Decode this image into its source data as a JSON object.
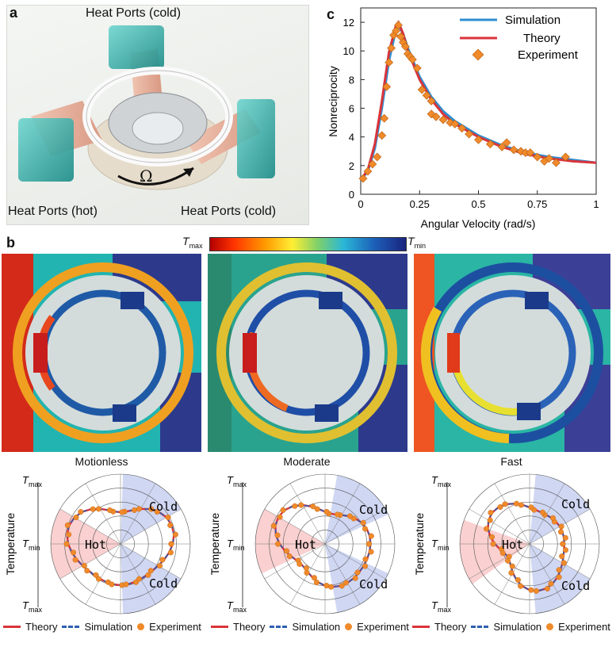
{
  "panel_a": {
    "letter": "a",
    "label_top": "Heat Ports (cold)",
    "label_left": "Heat Ports (hot)",
    "label_right": "Heat Ports (cold)",
    "omega": "Ω"
  },
  "panel_b": {
    "letter": "b",
    "colorbar": {
      "t_max_main": "T",
      "t_max_sub": "max",
      "t_min_main": "T",
      "t_min_sub": "min"
    },
    "simulations": [
      {
        "title": "Motionless"
      },
      {
        "title": "Moderate"
      },
      {
        "title": "Fast"
      }
    ],
    "polar": {
      "y_axis_title": "Temperature",
      "tick_top_main": "T",
      "tick_top_sub": "max",
      "tick_mid_main": "T",
      "tick_mid_sub": "min",
      "tick_bot_main": "T",
      "tick_bot_sub": "max",
      "hot_label": "Hot",
      "cold_label": "Cold"
    },
    "legend": {
      "theory": "Theory",
      "simulation": "Simulation",
      "experiment": "Experiment"
    }
  },
  "chart_data": {
    "type": "line",
    "letter": "c",
    "xlabel": "Angular Velocity (rad/s)",
    "ylabel": "Nonreciprocity",
    "xlim": [
      0,
      1
    ],
    "ylim": [
      0,
      13
    ],
    "xticks": [
      "0",
      "0.25",
      "0.5",
      "0.75",
      "1"
    ],
    "yticks": [
      "0",
      "2",
      "4",
      "6",
      "8",
      "10",
      "12"
    ],
    "legend": [
      "Simulation",
      "Theory",
      "Experiment"
    ],
    "colors": {
      "simulation": "#2f8fd0",
      "theory": "#d9343a",
      "experiment": "#f08a2a"
    },
    "series": [
      {
        "name": "Simulation",
        "x": [
          0,
          0.03,
          0.06,
          0.09,
          0.12,
          0.15,
          0.16,
          0.18,
          0.2,
          0.25,
          0.3,
          0.35,
          0.4,
          0.5,
          0.6,
          0.7,
          0.8,
          0.9,
          1.0
        ],
        "y": [
          1.0,
          1.6,
          3.2,
          6.0,
          9.3,
          11.5,
          11.8,
          11.2,
          10.2,
          8.2,
          6.8,
          5.8,
          5.1,
          4.1,
          3.4,
          2.9,
          2.6,
          2.4,
          2.2
        ]
      },
      {
        "name": "Theory",
        "x": [
          0,
          0.03,
          0.06,
          0.09,
          0.12,
          0.15,
          0.16,
          0.18,
          0.2,
          0.25,
          0.3,
          0.35,
          0.4,
          0.5,
          0.6,
          0.7,
          0.8,
          0.9,
          1.0
        ],
        "y": [
          1.0,
          1.7,
          3.5,
          6.5,
          9.9,
          11.8,
          12.0,
          11.2,
          10.0,
          8.0,
          6.6,
          5.6,
          4.9,
          4.0,
          3.3,
          2.8,
          2.5,
          2.3,
          2.2
        ]
      },
      {
        "name": "Experiment",
        "x": [
          0.01,
          0.03,
          0.05,
          0.07,
          0.09,
          0.1,
          0.11,
          0.12,
          0.13,
          0.14,
          0.15,
          0.16,
          0.17,
          0.18,
          0.19,
          0.2,
          0.21,
          0.22,
          0.24,
          0.26,
          0.28,
          0.3,
          0.3,
          0.32,
          0.35,
          0.38,
          0.4,
          0.43,
          0.46,
          0.5,
          0.55,
          0.6,
          0.62,
          0.65,
          0.68,
          0.7,
          0.72,
          0.75,
          0.78,
          0.8,
          0.83,
          0.87
        ],
        "y": [
          1.1,
          1.6,
          2.1,
          2.6,
          4.1,
          5.3,
          7.5,
          9.2,
          10.2,
          11.1,
          11.4,
          11.8,
          11.0,
          10.6,
          10.3,
          9.8,
          9.6,
          9.4,
          8.8,
          7.3,
          6.9,
          5.6,
          6.5,
          5.4,
          5.2,
          5.0,
          4.9,
          4.6,
          4.2,
          3.8,
          3.5,
          3.3,
          3.6,
          3.1,
          3.0,
          2.9,
          2.9,
          2.6,
          2.3,
          2.5,
          2.2,
          2.6
        ]
      }
    ]
  }
}
